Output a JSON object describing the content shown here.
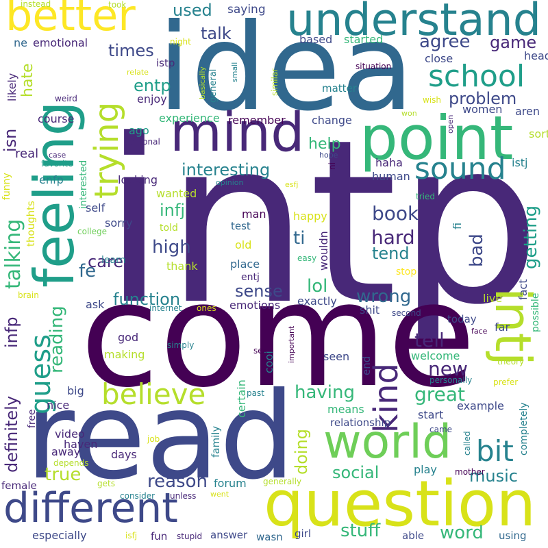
{
  "words": {
    "intp": "intp",
    "come": "come",
    "read": "read",
    "idea": "idea",
    "question": "question",
    "different": "different",
    "understand": "understand",
    "point": "point",
    "mind": "mind",
    "feeling": "feeling",
    "better": "better",
    "intj": "intj",
    "kind": "kind",
    "world": "world",
    "believe": "believe",
    "trying": "trying",
    "school": "school",
    "sound": "sound",
    "guess": "guess",
    "bit": "bit",
    "talking": "talking",
    "infp": "infp",
    "definitely": "definitely",
    "reading": "reading",
    "function": "function",
    "interesting": "interesting",
    "problem": "problem",
    "hard": "hard",
    "high": "high",
    "book": "book",
    "wrong": "wrong",
    "tell": "tell",
    "great": "great",
    "new": "new",
    "having": "having",
    "social": "social",
    "music": "music",
    "reason": "reason",
    "true": "true",
    "stuff": "stuff",
    "word": "word",
    "doing": "doing",
    "bad": "bad",
    "getting": "getting",
    "sense": "sense",
    "lol": "lol",
    "tend": "tend",
    "care": "care",
    "fe": "fe",
    "ti": "ti",
    "infj": "infj",
    "entp": "entp",
    "times": "times",
    "talk": "talk",
    "agree": "agree",
    "game": "game",
    "used": "used",
    "hate": "hate",
    "isn": "isn",
    "help": "help",
    "emotional": "emotional",
    "saying": "saying",
    "ne": "ne",
    "likely": "likely",
    "weird": "weird",
    "course": "course",
    "real": "real",
    "enfp": "enfp",
    "funny": "funny",
    "favorite": "favorite",
    "interested": "interested",
    "self": "self",
    "sorry": "sorry",
    "man": "man",
    "test": "test",
    "happy": "happy",
    "told": "told",
    "wanted": "wanted",
    "looking": "looking",
    "human": "human",
    "haha": "haha",
    "istj": "istj",
    "sort": "sort",
    "aren": "aren",
    "women": "women",
    "head": "head",
    "close": "close",
    "matter": "matter",
    "based": "based",
    "started": "started",
    "istp": "istp",
    "night": "night",
    "relate": "relate",
    "enjoy": "enjoy",
    "experience": "experience",
    "remember": "remember",
    "change": "change",
    "ago": "ago",
    "personal": "personal",
    "case": "case",
    "hope": "hope",
    "opinion": "opinion",
    "esfj": "esfj",
    "tried": "tried",
    "fi": "fi",
    "fact": "fact",
    "possible": "possible",
    "live": "live",
    "crazy": "crazy",
    "today": "today",
    "far": "far",
    "face": "face",
    "welcome": "welcome",
    "end": "end",
    "seen": "seen",
    "shit": "shit",
    "second": "second",
    "emotions": "emotions",
    "exactly": "exactly",
    "entj": "entj",
    "place": "place",
    "old": "old",
    "stop": "stop",
    "easy": "easy",
    "thank": "thank",
    "ask": "ask",
    "god": "god",
    "making": "making",
    "cool": "cool",
    "certain": "certain",
    "wouldn": "wouldn",
    "thoughts": "thoughts",
    "college": "college",
    "learn": "learn",
    "brain": "brain",
    "internet": "internet",
    "ones": "ones",
    "big": "big",
    "nice": "nice",
    "free": "free",
    "video": "video",
    "haven": "haven",
    "away": "away",
    "days": "days",
    "family": "family",
    "forum": "forum",
    "play": "play",
    "relationship": "relationship",
    "means": "means",
    "start": "start",
    "example": "example",
    "completely": "completely",
    "came": "came",
    "called": "called",
    "mother": "mother",
    "female": "female",
    "depends": "depends",
    "gets": "gets",
    "consider": "consider",
    "unless": "unless",
    "went": "went",
    "generally": "generally",
    "especially": "especially",
    "isfj": "isfj",
    "fun": "fun",
    "stupid": "stupid",
    "answer": "answer",
    "wasn": "wasn",
    "girl": "girl",
    "able": "able",
    "using": "using",
    "job": "job",
    "past": "past",
    "sex": "sex",
    "important": "important",
    "simply": "simply",
    "personally": "personally",
    "prefer": "prefer",
    "theory": "theory",
    "instead": "instead",
    "took": "took",
    "wish": "wish",
    "won": "won",
    "open": "open",
    "similar": "similar",
    "small": "small",
    "basically": "basically",
    "general": "general",
    "situation": "situation",
    "ni": "ni"
  }
}
